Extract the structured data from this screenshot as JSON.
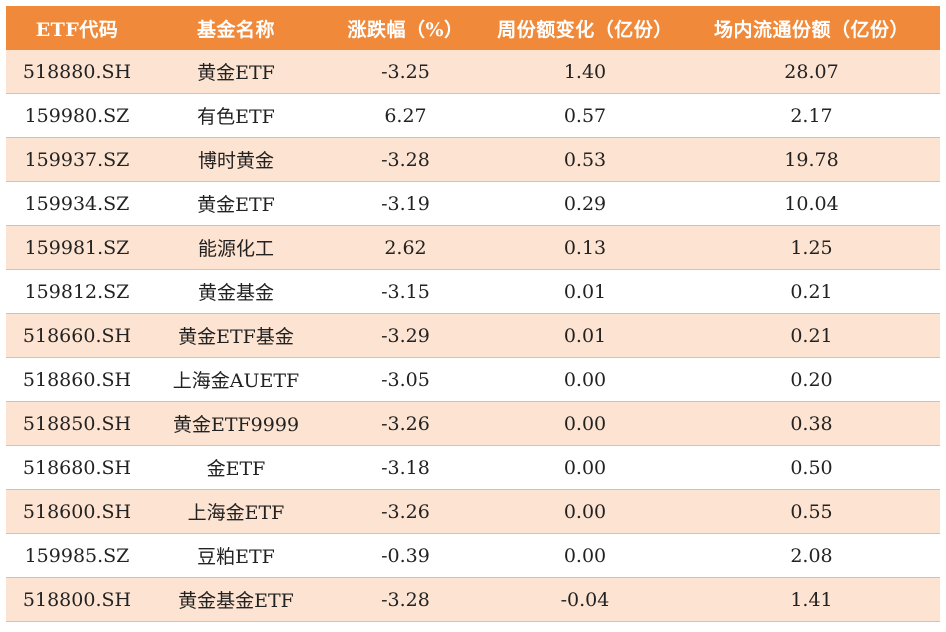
{
  "colors": {
    "header_bg": "#f08a3a",
    "header_text": "#ffffff",
    "odd_row_bg": "#fde3d1",
    "even_row_bg": "#ffffff",
    "row_border": "#f4b889"
  },
  "table": {
    "headers": [
      "ETF代码",
      "基金名称",
      "涨跌幅（%）",
      "周份额变化（亿份）",
      "场内流通份额（亿份）"
    ],
    "rows": [
      [
        "518880.SH",
        "黄金ETF",
        "-3.25",
        "1.40",
        "28.07"
      ],
      [
        "159980.SZ",
        "有色ETF",
        "6.27",
        "0.57",
        "2.17"
      ],
      [
        "159937.SZ",
        "博时黄金",
        "-3.28",
        "0.53",
        "19.78"
      ],
      [
        "159934.SZ",
        "黄金ETF",
        "-3.19",
        "0.29",
        "10.04"
      ],
      [
        "159981.SZ",
        "能源化工",
        "2.62",
        "0.13",
        "1.25"
      ],
      [
        "159812.SZ",
        "黄金基金",
        "-3.15",
        "0.01",
        "0.21"
      ],
      [
        "518660.SH",
        "黄金ETF基金",
        "-3.29",
        "0.01",
        "0.21"
      ],
      [
        "518860.SH",
        "上海金AUETF",
        "-3.05",
        "0.00",
        "0.20"
      ],
      [
        "518850.SH",
        "黄金ETF9999",
        "-3.26",
        "0.00",
        "0.38"
      ],
      [
        "518680.SH",
        "金ETF",
        "-3.18",
        "0.00",
        "0.50"
      ],
      [
        "518600.SH",
        "上海金ETF",
        "-3.26",
        "0.00",
        "0.55"
      ],
      [
        "159985.SZ",
        "豆粕ETF",
        "-0.39",
        "0.00",
        "2.08"
      ],
      [
        "518800.SH",
        "黄金基金ETF",
        "-3.28",
        "-0.04",
        "1.41"
      ]
    ]
  }
}
